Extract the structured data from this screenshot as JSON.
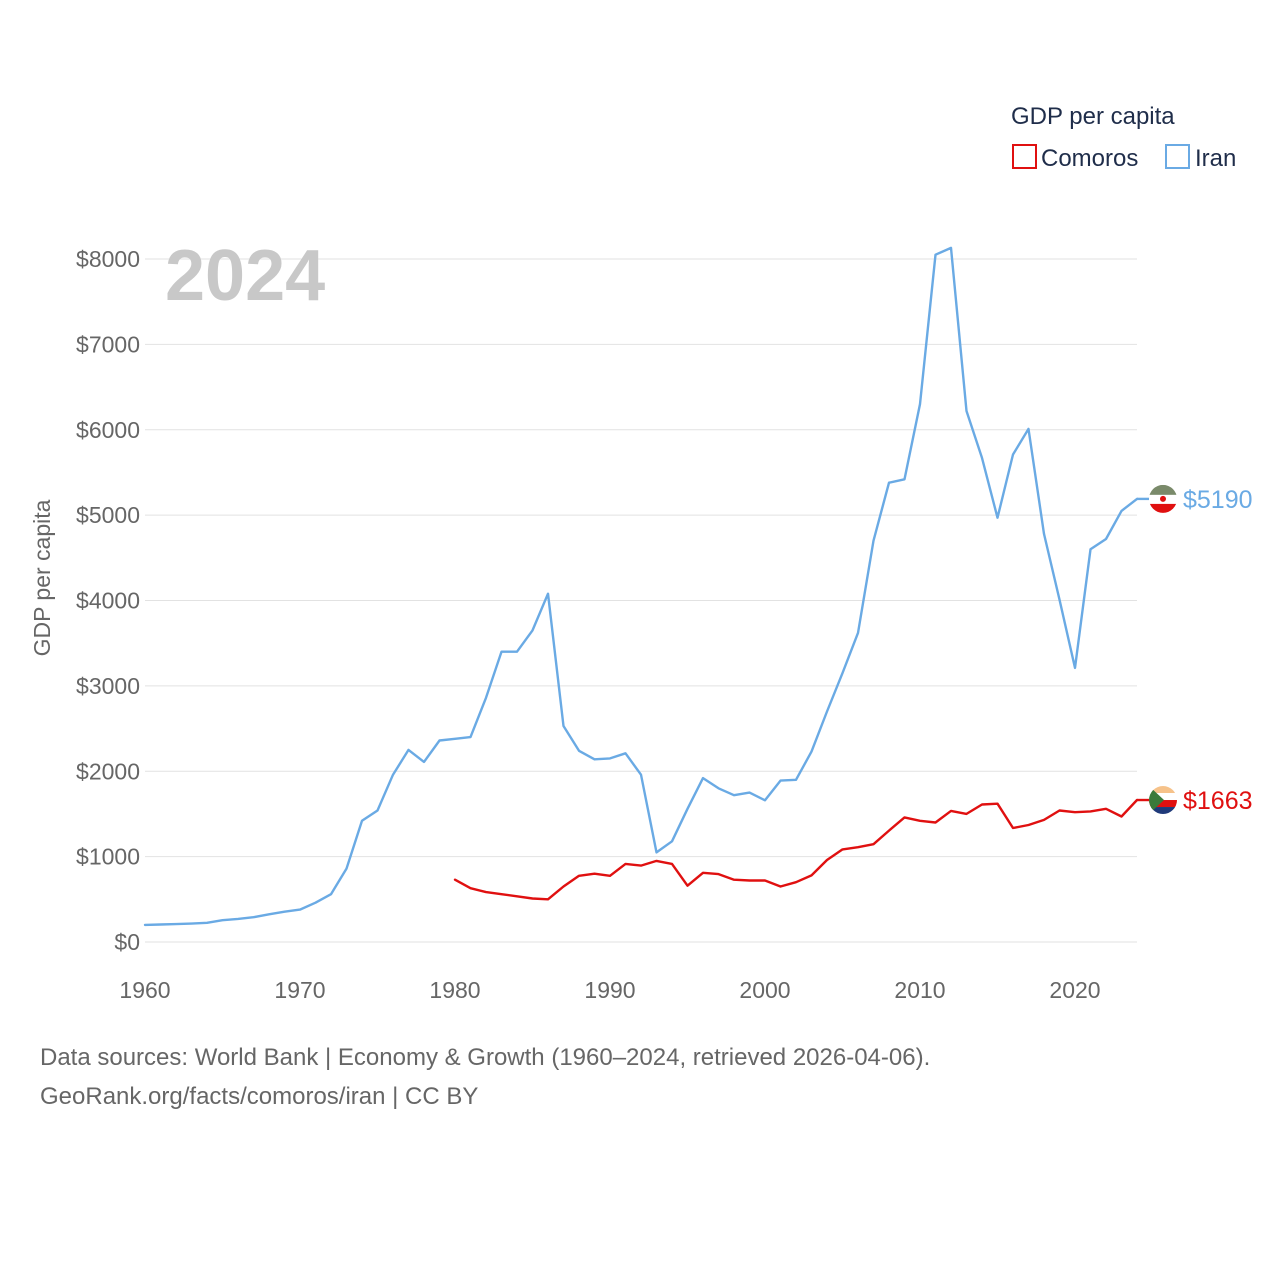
{
  "colors": {
    "comoros": "#e01010",
    "iran": "#6aaae4",
    "grid": "#e2e2e2"
  },
  "footer": {
    "line1": "Data sources: World Bank | Economy & Growth (1960–2024, retrieved 2026-04-06).",
    "line2": "GeoRank.org/facts/comoros/iran | CC BY"
  },
  "chart_data": {
    "type": "line",
    "title": "",
    "year_label": "2024",
    "ylabel": "GDP per capita",
    "xlabel": "",
    "xlim": [
      1960,
      2024
    ],
    "ylim": [
      0,
      8000
    ],
    "x_ticks": [
      1960,
      1970,
      1980,
      1990,
      2000,
      2010,
      2020
    ],
    "y_ticks": [
      {
        "value": 0,
        "label": "$0"
      },
      {
        "value": 1000,
        "label": "$1000"
      },
      {
        "value": 2000,
        "label": "$2000"
      },
      {
        "value": 3000,
        "label": "$3000"
      },
      {
        "value": 4000,
        "label": "$4000"
      },
      {
        "value": 5000,
        "label": "$5000"
      },
      {
        "value": 6000,
        "label": "$6000"
      },
      {
        "value": 7000,
        "label": "$7000"
      },
      {
        "value": 8000,
        "label": "$8000"
      }
    ],
    "legend": {
      "title": "GDP per capita",
      "placement": "top-right"
    },
    "series": [
      {
        "name": "Comoros",
        "color_key": "comoros",
        "end_label": "$1663",
        "points": [
          [
            1980,
            730
          ],
          [
            1981,
            630
          ],
          [
            1982,
            585
          ],
          [
            1983,
            560
          ],
          [
            1984,
            535
          ],
          [
            1985,
            510
          ],
          [
            1986,
            500
          ],
          [
            1987,
            650
          ],
          [
            1988,
            775
          ],
          [
            1989,
            800
          ],
          [
            1990,
            775
          ],
          [
            1991,
            915
          ],
          [
            1992,
            895
          ],
          [
            1993,
            950
          ],
          [
            1994,
            915
          ],
          [
            1995,
            660
          ],
          [
            1996,
            810
          ],
          [
            1997,
            795
          ],
          [
            1998,
            730
          ],
          [
            1999,
            720
          ],
          [
            2000,
            720
          ],
          [
            2001,
            650
          ],
          [
            2002,
            700
          ],
          [
            2003,
            780
          ],
          [
            2004,
            960
          ],
          [
            2005,
            1085
          ],
          [
            2006,
            1110
          ],
          [
            2007,
            1145
          ],
          [
            2008,
            1305
          ],
          [
            2009,
            1460
          ],
          [
            2010,
            1420
          ],
          [
            2011,
            1400
          ],
          [
            2012,
            1535
          ],
          [
            2013,
            1500
          ],
          [
            2014,
            1610
          ],
          [
            2015,
            1620
          ],
          [
            2016,
            1335
          ],
          [
            2017,
            1370
          ],
          [
            2018,
            1430
          ],
          [
            2019,
            1540
          ],
          [
            2020,
            1520
          ],
          [
            2021,
            1530
          ],
          [
            2022,
            1560
          ],
          [
            2023,
            1470
          ],
          [
            2024,
            1663
          ]
        ]
      },
      {
        "name": "Iran",
        "color_key": "iran",
        "end_label": "$5190",
        "points": [
          [
            1960,
            200
          ],
          [
            1961,
            205
          ],
          [
            1962,
            210
          ],
          [
            1963,
            215
          ],
          [
            1964,
            225
          ],
          [
            1965,
            255
          ],
          [
            1966,
            270
          ],
          [
            1967,
            290
          ],
          [
            1968,
            325
          ],
          [
            1969,
            355
          ],
          [
            1970,
            380
          ],
          [
            1971,
            460
          ],
          [
            1972,
            560
          ],
          [
            1973,
            860
          ],
          [
            1974,
            1420
          ],
          [
            1975,
            1540
          ],
          [
            1976,
            1960
          ],
          [
            1977,
            2250
          ],
          [
            1978,
            2110
          ],
          [
            1979,
            2360
          ],
          [
            1980,
            2380
          ],
          [
            1981,
            2400
          ],
          [
            1982,
            2860
          ],
          [
            1983,
            3400
          ],
          [
            1984,
            3400
          ],
          [
            1985,
            3650
          ],
          [
            1986,
            4080
          ],
          [
            1987,
            2530
          ],
          [
            1988,
            2240
          ],
          [
            1989,
            2140
          ],
          [
            1990,
            2150
          ],
          [
            1991,
            2210
          ],
          [
            1992,
            1960
          ],
          [
            1993,
            1050
          ],
          [
            1994,
            1180
          ],
          [
            1995,
            1560
          ],
          [
            1996,
            1920
          ],
          [
            1997,
            1800
          ],
          [
            1998,
            1720
          ],
          [
            1999,
            1750
          ],
          [
            2000,
            1660
          ],
          [
            2001,
            1890
          ],
          [
            2002,
            1900
          ],
          [
            2003,
            2230
          ],
          [
            2004,
            2700
          ],
          [
            2005,
            3150
          ],
          [
            2006,
            3620
          ],
          [
            2007,
            4700
          ],
          [
            2008,
            5380
          ],
          [
            2009,
            5420
          ],
          [
            2010,
            6300
          ],
          [
            2011,
            8050
          ],
          [
            2012,
            8130
          ],
          [
            2013,
            6220
          ],
          [
            2014,
            5670
          ],
          [
            2015,
            4970
          ],
          [
            2016,
            5710
          ],
          [
            2017,
            6010
          ],
          [
            2018,
            4780
          ],
          [
            2019,
            4010
          ],
          [
            2020,
            3210
          ],
          [
            2021,
            4600
          ],
          [
            2022,
            4720
          ],
          [
            2023,
            5050
          ],
          [
            2024,
            5190
          ]
        ]
      }
    ]
  }
}
